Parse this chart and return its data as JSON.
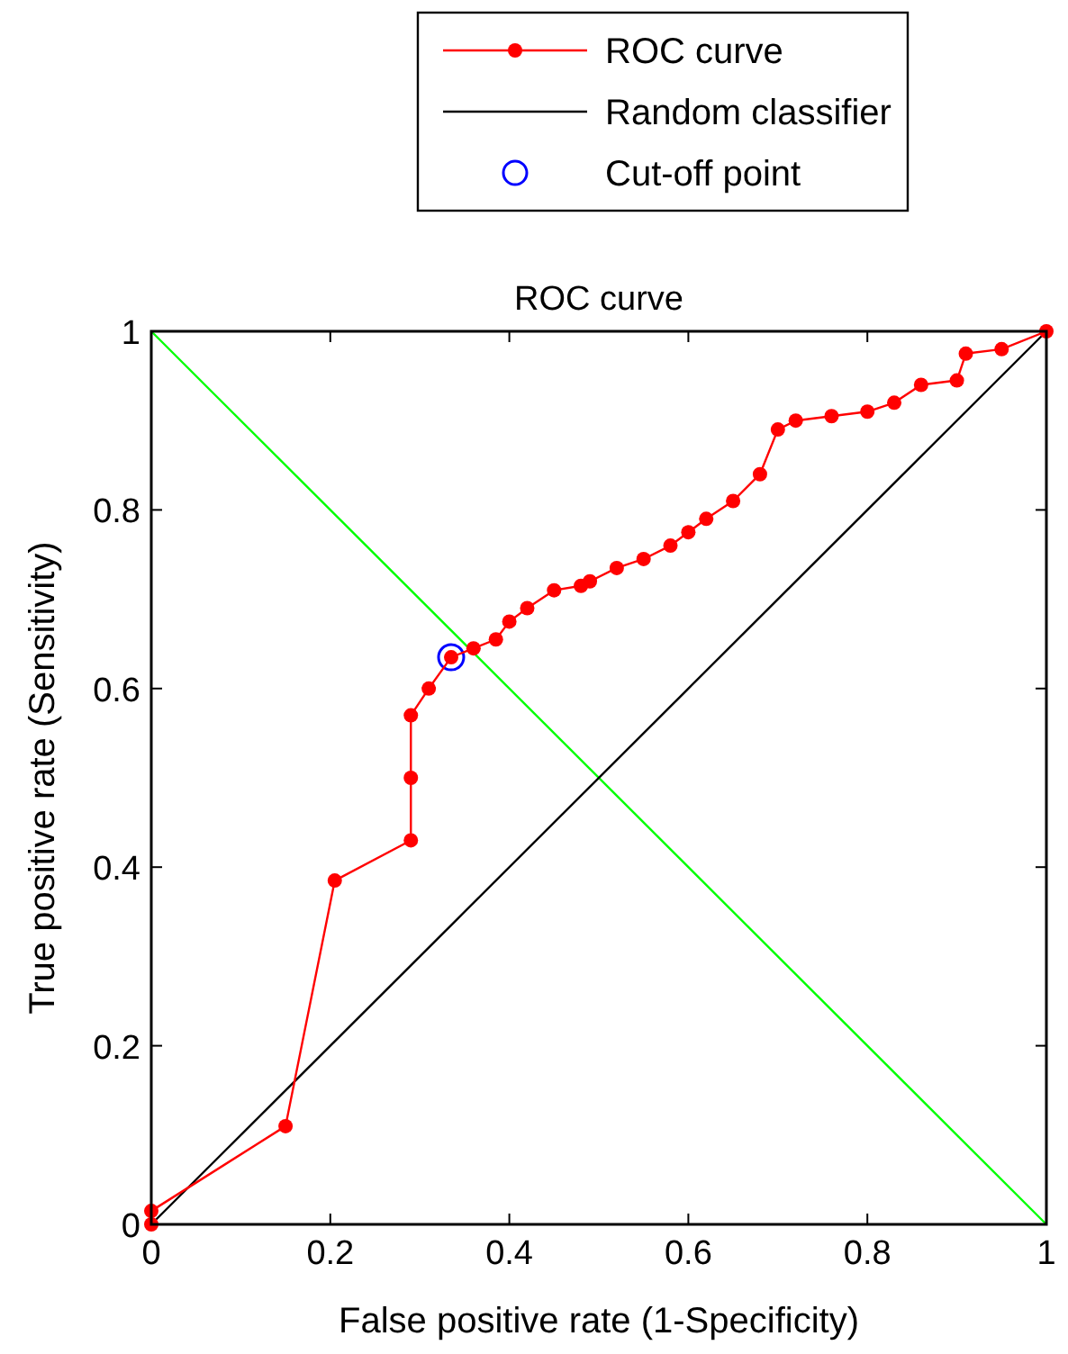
{
  "chart_data": {
    "type": "line",
    "title": "ROC curve",
    "xlabel": "False positive rate (1-Specificity)",
    "ylabel": "True positive rate (Sensitivity)",
    "xlim": [
      0,
      1
    ],
    "ylim": [
      0,
      1
    ],
    "xticks": [
      0,
      0.2,
      0.4,
      0.6,
      0.8,
      1
    ],
    "yticks": [
      0,
      0.2,
      0.4,
      0.6,
      0.8,
      1
    ],
    "grid": false,
    "legend": "top",
    "series": [
      {
        "name": "ROC curve",
        "color": "#ff0000",
        "marker": "circle",
        "x": [
          0,
          0,
          0.15,
          0.205,
          0.29,
          0.29,
          0.29,
          0.31,
          0.335,
          0.36,
          0.385,
          0.4,
          0.42,
          0.45,
          0.48,
          0.49,
          0.52,
          0.55,
          0.58,
          0.6,
          0.62,
          0.65,
          0.68,
          0.7,
          0.72,
          0.76,
          0.8,
          0.83,
          0.86,
          0.9,
          0.91,
          0.95,
          1
        ],
        "values": [
          0,
          0.015,
          0.11,
          0.385,
          0.43,
          0.5,
          0.57,
          0.6,
          0.635,
          0.645,
          0.655,
          0.675,
          0.69,
          0.71,
          0.715,
          0.72,
          0.735,
          0.745,
          0.76,
          0.775,
          0.79,
          0.81,
          0.84,
          0.89,
          0.9,
          0.905,
          0.91,
          0.92,
          0.94,
          0.945,
          0.975,
          0.98,
          1
        ]
      },
      {
        "name": "Random classifier",
        "color": "#000000",
        "marker": "none",
        "x": [
          0,
          1
        ],
        "values": [
          0,
          1
        ]
      },
      {
        "color": "#00ff00",
        "marker": "none",
        "x": [
          0,
          1
        ],
        "values": [
          1,
          0
        ]
      },
      {
        "name": "Cut-off point",
        "type": "scatter",
        "color": "#0000ff",
        "marker": "circle",
        "x": [
          0.335
        ],
        "values": [
          0.635
        ]
      }
    ]
  }
}
